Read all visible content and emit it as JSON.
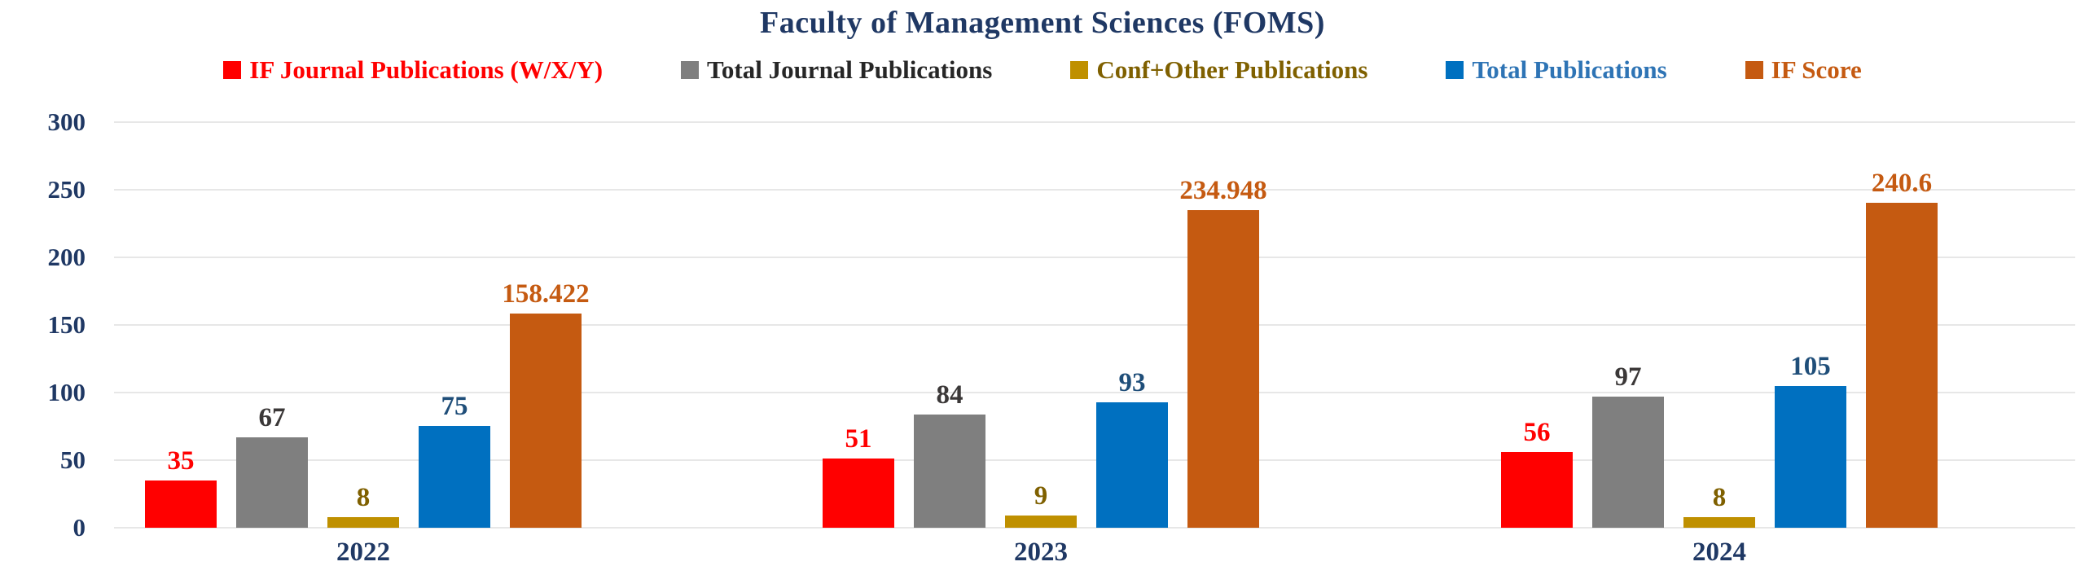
{
  "chart_data": {
    "type": "bar",
    "title": "Faculty of Management Sciences (FOMS)",
    "categories": [
      "2022",
      "2023",
      "2024"
    ],
    "series": [
      {
        "name": "IF Journal Publications (W/X/Y)",
        "color": "#FF0000",
        "legend_color": "#FF0000",
        "label_color": "#FF0000",
        "values": [
          35,
          51,
          56
        ],
        "labels": [
          "35",
          "51",
          "56"
        ]
      },
      {
        "name": "Total Journal Publications",
        "color": "#7F7F7F",
        "legend_color": "#262626",
        "label_color": "#3B3838",
        "values": [
          67,
          84,
          97
        ],
        "labels": [
          "67",
          "84",
          "97"
        ]
      },
      {
        "name": "Conf+Other Publications",
        "color": "#BF9000",
        "legend_color": "#7F6000",
        "label_color": "#7F6000",
        "values": [
          8,
          9,
          8
        ],
        "labels": [
          "8",
          "9",
          "8"
        ]
      },
      {
        "name": "Total Publications",
        "color": "#0070C0",
        "legend_color": "#2E74B5",
        "label_color": "#1F4E79",
        "values": [
          75,
          93,
          105
        ],
        "labels": [
          "75",
          "93",
          "105"
        ]
      },
      {
        "name": "IF Score",
        "color": "#C55A11",
        "legend_color": "#C55A11",
        "label_color": "#C55A11",
        "values": [
          158.422,
          234.948,
          240.6
        ],
        "labels": [
          "158.422",
          "234.948",
          "240.6"
        ]
      }
    ],
    "ylim": [
      0,
      300
    ],
    "yticks": [
      0,
      50,
      100,
      150,
      200,
      250,
      300
    ],
    "grid": true,
    "legend_position": "top",
    "axis_text_color": "#1F3864",
    "gridline_color": "#E7E7E7",
    "background_color": "#FFFFFF"
  }
}
